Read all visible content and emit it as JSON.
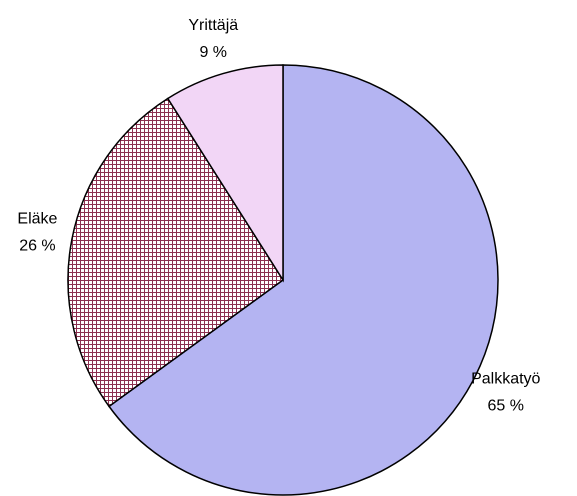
{
  "chart_data": {
    "type": "pie",
    "categories": [
      "Palkkatyö",
      "Eläke",
      "Yrittäjä"
    ],
    "values": [
      65,
      26,
      9
    ],
    "value_labels": [
      "65 %",
      "26 %",
      "9 %"
    ],
    "colors": [
      "#b4b4f2",
      "#8c3050",
      "#f2d6f6"
    ],
    "hatch": [
      false,
      true,
      false
    ]
  }
}
